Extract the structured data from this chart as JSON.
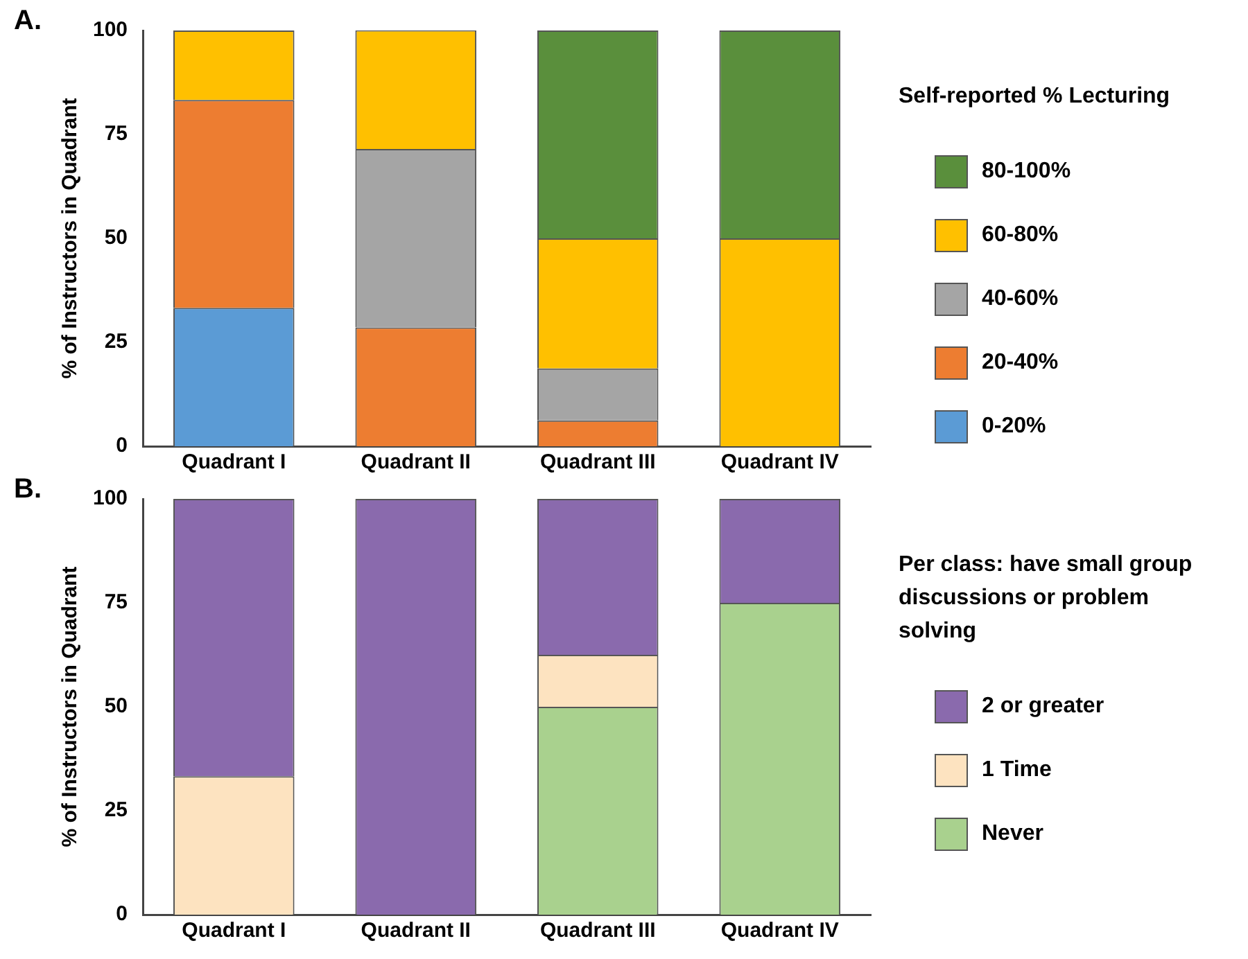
{
  "chart_data": [
    {
      "type": "bar",
      "stacked": true,
      "annotations": [
        "A."
      ],
      "ylabel": "% of Instructors in Quadrant",
      "legend_title": "Self-reported % Lecturing",
      "legend": "right",
      "grid": false,
      "categories": [
        "Quadrant I",
        "Quadrant II",
        "Quadrant III",
        "Quadrant IV"
      ],
      "ylim": [
        0,
        100
      ],
      "yticks": [
        0,
        25,
        50,
        75,
        100
      ],
      "series": [
        {
          "name": "0-20%",
          "color": "#5b9bd5",
          "values": [
            33.3,
            0,
            0,
            0
          ]
        },
        {
          "name": "20-40%",
          "color": "#ed7d31",
          "values": [
            50,
            28.6,
            6.2,
            0
          ]
        },
        {
          "name": "40-60%",
          "color": "#a5a5a5",
          "values": [
            0,
            42.9,
            12.5,
            0
          ]
        },
        {
          "name": "60-80%",
          "color": "#ffc000",
          "values": [
            16.7,
            28.6,
            31.3,
            50
          ]
        },
        {
          "name": "80-100%",
          "color": "#5a8f3c",
          "values": [
            0,
            0,
            50,
            50
          ]
        }
      ]
    },
    {
      "type": "bar",
      "stacked": true,
      "annotations": [
        "B."
      ],
      "ylabel": "% of Instructors in Quadrant",
      "legend_title": "Per class: have small group discussions or problem solving",
      "legend": "right",
      "grid": false,
      "categories": [
        "Quadrant I",
        "Quadrant II",
        "Quadrant III",
        "Quadrant IV"
      ],
      "ylim": [
        0,
        100
      ],
      "yticks": [
        0,
        25,
        50,
        75,
        100
      ],
      "series": [
        {
          "name": "Never",
          "color": "#a9d18e",
          "values": [
            0,
            0,
            50,
            75
          ]
        },
        {
          "name": "1 Time",
          "color": "#fde3c0",
          "values": [
            33.3,
            0,
            12.5,
            0
          ]
        },
        {
          "name": "2 or greater",
          "color": "#8a6aad",
          "values": [
            66.7,
            100,
            37.5,
            25
          ]
        }
      ]
    }
  ]
}
